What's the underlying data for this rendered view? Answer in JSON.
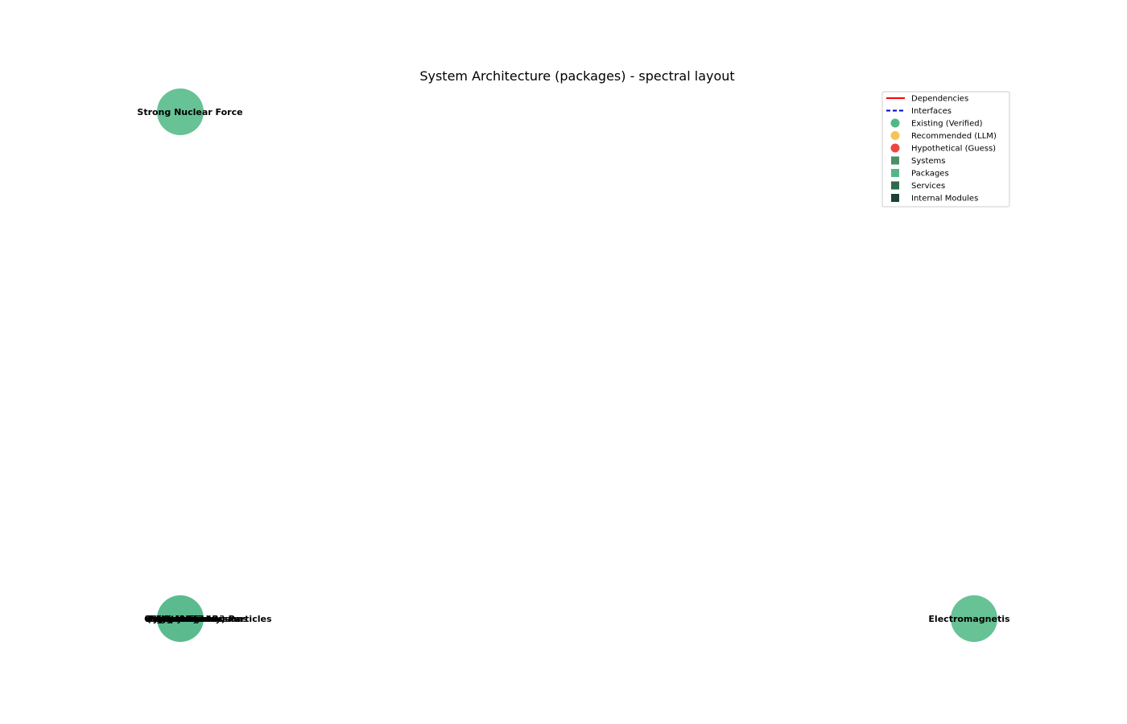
{
  "title": "System Architecture (packages) - spectral layout",
  "nodes": [
    {
      "id": "strong-nuclear-force",
      "label": "Strong Nuclear Force",
      "color": "#5fbf8f"
    },
    {
      "id": "cluster",
      "label": "ayy (symmetry) Particles",
      "color": "#52b788",
      "stacked_labels": [
        "Symmetry",
        "Quantum Fields",
        "Spacetime",
        "Particles",
        "Hypothetical Bosons",
        "Gravity",
        "Weak Force",
        "Fermions",
        "Higgs Mechanism"
      ]
    },
    {
      "id": "electromagnetism",
      "label": "Electromagnetis",
      "color": "#5fbf8f"
    }
  ],
  "legend": {
    "items": [
      {
        "label": "Dependencies",
        "kind": "line",
        "color": "#ff0000"
      },
      {
        "label": "Interfaces",
        "kind": "dashed",
        "color": "#0000cc"
      },
      {
        "label": "Existing (Verified)",
        "kind": "circle",
        "color": "#52b788"
      },
      {
        "label": "Recommended (LLM)",
        "kind": "circle",
        "color": "#f4c45a"
      },
      {
        "label": "Hypothetical (Guess)",
        "kind": "circle",
        "color": "#f04444"
      },
      {
        "label": "Systems",
        "kind": "square",
        "color": "#4a8f6a"
      },
      {
        "label": "Packages",
        "kind": "square",
        "color": "#52b788"
      },
      {
        "label": "Services",
        "kind": "square",
        "color": "#2d6a4f"
      },
      {
        "label": "Internal Modules",
        "kind": "square",
        "color": "#1b4332"
      }
    ]
  }
}
